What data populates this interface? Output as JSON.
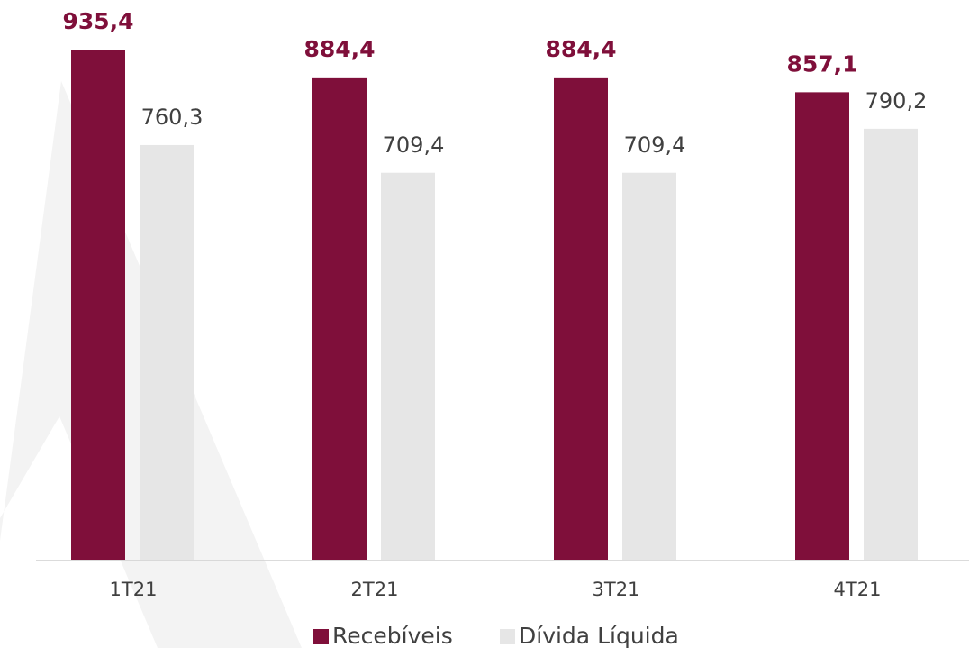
{
  "chart_data": {
    "type": "bar",
    "categories": [
      "1T21",
      "2T21",
      "3T21",
      "4T21"
    ],
    "series": [
      {
        "name": "Recebíveis",
        "color": "#7f0f3a",
        "values": [
          935.4,
          884.4,
          884.4,
          857.1
        ],
        "value_labels": [
          "935,4",
          "884,4",
          "884,4",
          "857,1"
        ]
      },
      {
        "name": "Dívida Líquida",
        "color": "#e6e6e6",
        "values": [
          760.3,
          709.4,
          709.4,
          790.2
        ],
        "value_labels": [
          "760,3",
          "709,4",
          "709,4",
          "790,2"
        ]
      }
    ],
    "legend": "bottom"
  }
}
